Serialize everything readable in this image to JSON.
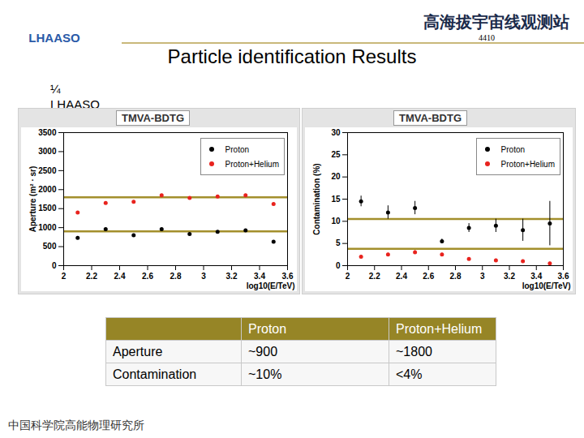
{
  "header": {
    "logo": "LHAASO",
    "banner": "高海拔宇宙线观测站",
    "page": "4410"
  },
  "title": "Particle identification Results",
  "subtitle_lines": [
    "¼",
    "LHAASO"
  ],
  "chart_data": [
    {
      "type": "scatter",
      "title": "TMVA-BDTG",
      "x_label": "log10(E/TeV)",
      "y_label": "Aperture (m² · sr)",
      "x": [
        2.1,
        2.3,
        2.5,
        2.7,
        2.9,
        3.1,
        3.3,
        3.5
      ],
      "series": [
        {
          "name": "Proton",
          "color": "#000000",
          "values": [
            730,
            960,
            800,
            960,
            830,
            890,
            930,
            630
          ]
        },
        {
          "name": "Proton+Helium",
          "color": "#e8231e",
          "values": [
            1400,
            1650,
            1680,
            1850,
            1780,
            1820,
            1850,
            1620
          ]
        }
      ],
      "reference_lines": [
        900,
        1800
      ],
      "xlim": [
        2,
        3.6
      ],
      "xticks": [
        2,
        2.2,
        2.4,
        2.6,
        2.8,
        3,
        3.2,
        3.4,
        3.6
      ],
      "ylim": [
        0,
        3500
      ],
      "yticks": [
        0,
        500,
        1000,
        1500,
        2000,
        2500,
        3000,
        3500
      ],
      "legend": "top-right",
      "marker": "circle"
    },
    {
      "type": "scatter",
      "title": "TMVA-BDTG",
      "x_label": "log10(E/TeV)",
      "y_label": "Contamination (%)",
      "x": [
        2.1,
        2.3,
        2.5,
        2.7,
        2.9,
        3.1,
        3.3,
        3.5
      ],
      "series": [
        {
          "name": "Proton",
          "color": "#000000",
          "values": [
            14.5,
            12,
            13,
            5.5,
            8.5,
            9,
            8,
            9.5
          ],
          "errors": [
            1.2,
            1.5,
            1.5,
            0.5,
            1,
            1.5,
            2.5,
            5
          ]
        },
        {
          "name": "Proton+Helium",
          "color": "#e8231e",
          "values": [
            2,
            2.5,
            3,
            2.5,
            1.5,
            1.2,
            1,
            0.5
          ],
          "errors": [
            0.3,
            0.3,
            0.4,
            0.3,
            0.3,
            0.3,
            0.3,
            0.3
          ]
        }
      ],
      "reference_lines": [
        10.5,
        3.8
      ],
      "xlim": [
        2,
        3.6
      ],
      "xticks": [
        2,
        2.2,
        2.4,
        2.6,
        2.8,
        3,
        3.2,
        3.4,
        3.6
      ],
      "ylim": [
        0,
        30
      ],
      "yticks": [
        0,
        5,
        10,
        15,
        20,
        25,
        30
      ],
      "legend": "top-right",
      "marker": "circle"
    }
  ],
  "table": {
    "columns": [
      "Proton",
      "Proton+Helium"
    ],
    "rows": [
      [
        "Aperture",
        "~900",
        "~1800"
      ],
      [
        "Contamination",
        "~10%",
        "<4%"
      ]
    ]
  },
  "footer": "中国科学院高能物理研究所"
}
